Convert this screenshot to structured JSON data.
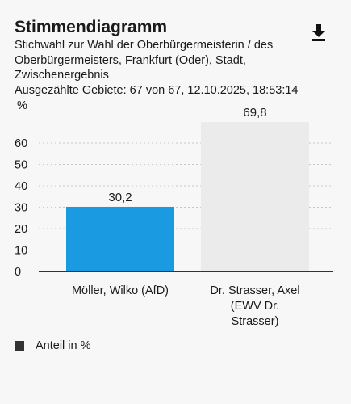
{
  "header": {
    "title": "Stimmendiagramm",
    "subtitle_lines": [
      "Stichwahl zur Wahl der Oberbürgermeisterin / des",
      "Oberbürgermeisters, Frankfurt (Oder), Stadt,",
      "Zwischenergebnis",
      "Ausgezählte Gebiete: 67 von 67, 12.10.2025, 18:53:14"
    ],
    "download_icon": "download-icon"
  },
  "legend": {
    "label": "Anteil in %",
    "swatch_color": "#333333"
  },
  "chart_data": {
    "type": "bar",
    "unit_label": "%",
    "categories": [
      [
        "Möller, Wilko (AfD)"
      ],
      [
        "Dr. Strasser, Axel",
        "(EWV Dr.",
        "Strasser)"
      ]
    ],
    "values": [
      30.2,
      69.8
    ],
    "value_labels": [
      "30,2",
      "69,8"
    ],
    "colors": [
      "#1a9ae0",
      "#ebebeb"
    ],
    "yticks": [
      0,
      10,
      20,
      30,
      40,
      50,
      60
    ],
    "ylim": [
      0,
      70
    ],
    "grid": true
  }
}
